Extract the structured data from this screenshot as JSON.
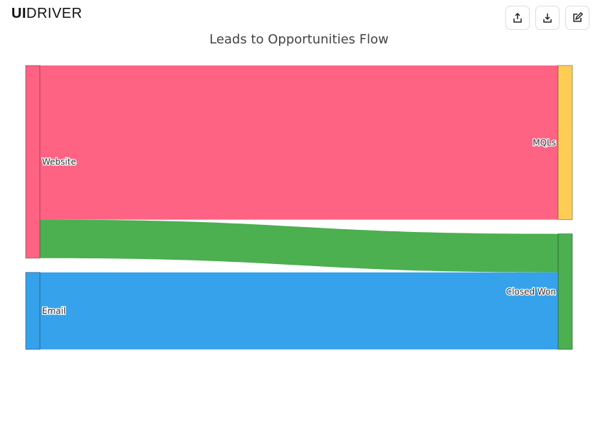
{
  "logo": {
    "bold": "UI",
    "rest": "DRIVER"
  },
  "toolbar": {
    "icons": [
      "share-icon",
      "download-icon",
      "edit-icon"
    ]
  },
  "chart_data": {
    "type": "sankey",
    "title": "Leads to Opportunities Flow",
    "nodes": [
      {
        "name": "Website",
        "column": 0,
        "color": "#ff6384"
      },
      {
        "name": "Email",
        "column": 0,
        "color": "#36a2eb"
      },
      {
        "name": "MQLs",
        "column": 1,
        "color": "#ffcd56"
      },
      {
        "name": "Closed Won",
        "column": 1,
        "color": "#4caf50"
      }
    ],
    "links": [
      {
        "source": "Website",
        "target": "MQLs",
        "value": 200,
        "color": "#ff6384"
      },
      {
        "source": "Website",
        "target": "Closed Won",
        "value": 50,
        "color": "#4caf50"
      },
      {
        "source": "Email",
        "target": "Closed Won",
        "value": 100,
        "color": "#36a2eb"
      }
    ]
  }
}
